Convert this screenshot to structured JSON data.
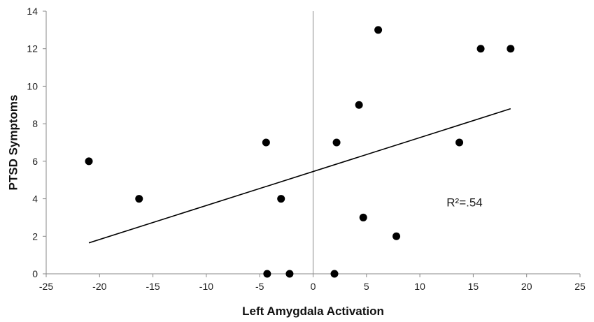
{
  "chart_data": {
    "type": "scatter",
    "title": "",
    "xlabel": "Left Amygdala Activation",
    "ylabel": "PTSD Symptoms",
    "xlim": [
      -25,
      25
    ],
    "ylim": [
      0,
      14
    ],
    "x_ticks": [
      -25,
      -20,
      -15,
      -10,
      -5,
      0,
      5,
      10,
      15,
      20,
      25
    ],
    "y_ticks": [
      0,
      2,
      4,
      6,
      8,
      10,
      12,
      14
    ],
    "grid": false,
    "series": [
      {
        "points": [
          {
            "x": -21.0,
            "y": 6
          },
          {
            "x": -16.3,
            "y": 4
          },
          {
            "x": -4.4,
            "y": 7
          },
          {
            "x": -3.0,
            "y": 4
          },
          {
            "x": -4.3,
            "y": 0
          },
          {
            "x": -2.2,
            "y": 0
          },
          {
            "x": 2.0,
            "y": 0
          },
          {
            "x": 2.2,
            "y": 7
          },
          {
            "x": 4.3,
            "y": 9
          },
          {
            "x": 4.7,
            "y": 3
          },
          {
            "x": 6.1,
            "y": 13
          },
          {
            "x": 7.8,
            "y": 2
          },
          {
            "x": 13.7,
            "y": 7
          },
          {
            "x": 15.7,
            "y": 12
          },
          {
            "x": 18.5,
            "y": 12
          }
        ],
        "color": "#000000"
      }
    ],
    "trendline": {
      "x_start": -21.0,
      "y_start": 1.65,
      "x_end": 18.5,
      "y_end": 8.8,
      "color": "#000000"
    },
    "annotation": {
      "text": "R²=.54",
      "x": 12.5,
      "y": 3.6
    }
  }
}
